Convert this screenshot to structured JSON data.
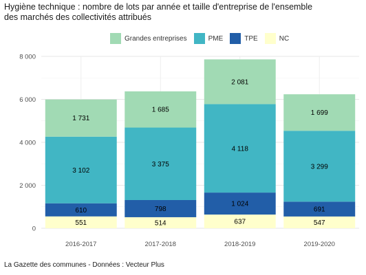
{
  "chart_data": {
    "type": "bar",
    "stacked": true,
    "title_lines": [
      "Hygiène technique : nombre de lots par année et taille d'entreprise de l'ensemble",
      "des marchés des collectivités attribués"
    ],
    "caption": "La Gazette des communes - Données : Vecteur Plus",
    "categories": [
      "2016-2017",
      "2017-2018",
      "2018-2019",
      "2019-2020"
    ],
    "ylim": [
      0,
      8000
    ],
    "yticks": [
      0,
      2000,
      4000,
      6000,
      8000
    ],
    "ytick_labels": [
      "0",
      "2 000",
      "4 000",
      "6 000",
      "8 000"
    ],
    "grid": true,
    "legend_position": "top",
    "series": [
      {
        "name": "NC",
        "color": "#FFFFCC",
        "values": [
          551,
          514,
          637,
          547
        ],
        "labels": [
          "551",
          "514",
          "637",
          "547"
        ]
      },
      {
        "name": "TPE",
        "color": "#225EA8",
        "values": [
          610,
          798,
          1024,
          691
        ],
        "labels": [
          "610",
          "798",
          "1 024",
          "691"
        ]
      },
      {
        "name": "PME",
        "color": "#41B6C4",
        "values": [
          3102,
          3375,
          4118,
          3299
        ],
        "labels": [
          "3 102",
          "3 375",
          "4 118",
          "3 299"
        ]
      },
      {
        "name": "Grandes entreprises",
        "color": "#A1DAB4",
        "values": [
          1731,
          1685,
          2081,
          1699
        ],
        "labels": [
          "1 731",
          "1 685",
          "2 081",
          "1 699"
        ]
      }
    ],
    "legend_order": [
      "Grandes entreprises",
      "PME",
      "TPE",
      "NC"
    ]
  }
}
